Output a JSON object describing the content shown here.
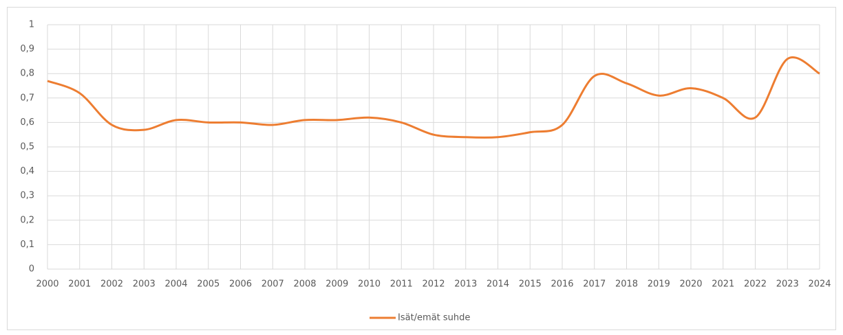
{
  "chart_data": {
    "type": "line",
    "categories": [
      "2000",
      "2001",
      "2002",
      "2003",
      "2004",
      "2005",
      "2006",
      "2007",
      "2008",
      "2009",
      "2010",
      "2011",
      "2012",
      "2013",
      "2014",
      "2015",
      "2016",
      "2017",
      "2018",
      "2019",
      "2020",
      "2021",
      "2022",
      "2023",
      "2024"
    ],
    "series": [
      {
        "name": "Isät/emät suhde",
        "color": "#ed7d31",
        "values": [
          0.77,
          0.72,
          0.59,
          0.57,
          0.61,
          0.6,
          0.6,
          0.59,
          0.61,
          0.61,
          0.62,
          0.6,
          0.55,
          0.54,
          0.54,
          0.56,
          0.59,
          0.79,
          0.76,
          0.71,
          0.74,
          0.7,
          0.62,
          0.86,
          0.8
        ]
      }
    ],
    "ylim": [
      0,
      1
    ],
    "yticks": [
      0,
      {
        "value": 0.1,
        "label": "0,1"
      },
      {
        "value": 0.2,
        "label": "0,2"
      },
      {
        "value": 0.3,
        "label": "0,3"
      },
      {
        "value": 0.4,
        "label": "0,4"
      },
      {
        "value": 0.5,
        "label": "0,5"
      },
      {
        "value": 0.6,
        "label": "0,6"
      },
      {
        "value": 0.7,
        "label": "0,7"
      },
      {
        "value": 0.8,
        "label": "0,8"
      },
      {
        "value": 0.9,
        "label": "0,9"
      },
      1
    ],
    "grid": true,
    "smooth": true,
    "legend": "bottom"
  }
}
